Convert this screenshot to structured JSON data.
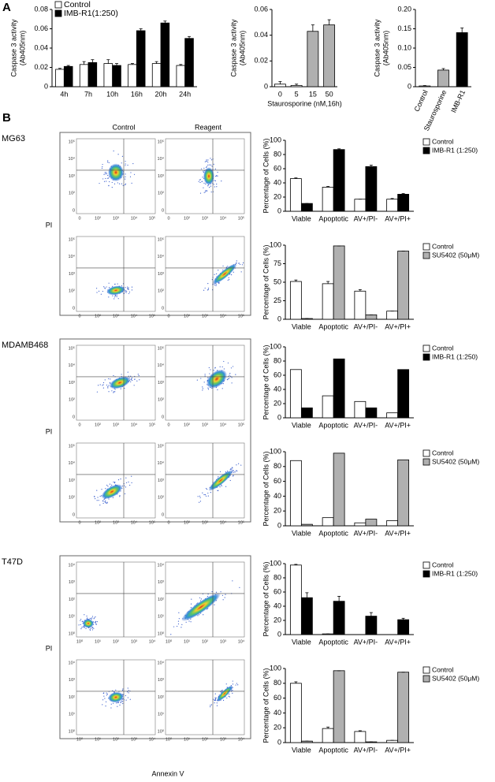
{
  "panel_labels": [
    "A",
    "B"
  ],
  "conditions": [
    "Control",
    "Reagent"
  ],
  "flow_y_label": "PI",
  "flow_x_label": "Annexin V",
  "sections": [
    {
      "label": "MG63",
      "flow_ticks": [
        "0",
        "10²",
        "10³",
        "10⁴",
        "10⁵"
      ]
    },
    {
      "label": "MDAMB468",
      "flow_ticks": [
        "0",
        "10²",
        "10³",
        "10⁴",
        "10⁵"
      ]
    },
    {
      "label": "T47D",
      "flow_ticks": [
        "10⁰",
        "10¹",
        "10²",
        "10³",
        "10⁴"
      ]
    }
  ],
  "chart_data": [
    {
      "type": "bar",
      "ylabel": [
        "Caspase 3 activity",
        "(Ab405nm)"
      ],
      "categories": [
        "4h",
        "7h",
        "10h",
        "16h",
        "20h",
        "24h"
      ],
      "series": [
        {
          "name": "Control",
          "color": "#ffffff",
          "values": [
            0.018,
            0.023,
            0.024,
            0.023,
            0.024,
            0.022
          ],
          "errors": [
            0.001,
            0.003,
            0.004,
            0.001,
            0.002,
            0.001
          ]
        },
        {
          "name": "IMB-R1(1:250)",
          "color": "#000000",
          "values": [
            0.021,
            0.025,
            0.022,
            0.058,
            0.066,
            0.05
          ],
          "errors": [
            0.001,
            0.003,
            0.002,
            0.002,
            0.002,
            0.002
          ]
        }
      ],
      "ylim": [
        0,
        0.08
      ],
      "yticks": [
        0,
        0.02,
        0.04,
        0.06,
        0.08
      ],
      "legend": "upper-left"
    },
    {
      "type": "bar",
      "ylabel": [
        "Caspase 3 activity",
        "(Ab405nm)"
      ],
      "xlabel": "Staurosporine (nM,16h)",
      "categories": [
        "0",
        "5",
        "15",
        "50"
      ],
      "values": [
        0.002,
        0.001,
        0.043,
        0.048
      ],
      "errors": [
        0.002,
        0.001,
        0.005,
        0.004
      ],
      "colors": [
        "#ffffff",
        "#ffffff",
        "#b0b0b0",
        "#b0b0b0"
      ],
      "ylim": [
        0,
        0.06
      ],
      "yticks": [
        0,
        0.02,
        0.04,
        0.06
      ]
    },
    {
      "type": "bar",
      "ylabel": [
        "Caspase 3 activity",
        "(Ab405nm)"
      ],
      "categories": [
        "Control",
        "Staurosporine",
        "IMB-R1"
      ],
      "values": [
        0.002,
        0.043,
        0.14
      ],
      "errors": [
        0.001,
        0.004,
        0.012
      ],
      "colors": [
        "#ffffff",
        "#b0b0b0",
        "#000000"
      ],
      "ylim": [
        0,
        0.2
      ],
      "yticks": [
        0,
        0.05,
        {
          "value": 0.1,
          "label": "0.10"
        },
        0.15,
        {
          "value": 0.2,
          "label": "0.20"
        }
      ]
    },
    {
      "type": "bar",
      "ylabel": "Percentage of Cells (%)",
      "categories": [
        "Viable",
        "Apoptotic",
        "AV+/PI-",
        "AV+/PI+"
      ],
      "series": [
        {
          "name": "Control",
          "color": "#ffffff",
          "values": [
            46,
            34,
            17,
            17
          ],
          "errors": [
            1,
            1,
            0,
            1
          ]
        },
        {
          "name": "IMB-R1 (1:250)",
          "color": "#000000",
          "values": [
            11,
            87,
            63,
            24
          ],
          "errors": [
            0,
            1,
            2,
            1
          ]
        }
      ],
      "ylim": [
        0,
        100
      ],
      "yticks": [
        0,
        20,
        40,
        60,
        80,
        100
      ],
      "legend": "right"
    },
    {
      "type": "bar",
      "ylabel": "Percentage of Cells (%)",
      "categories": [
        "Viable",
        "Apoptotic",
        "AV+/PI-",
        "AV+/PI+"
      ],
      "series": [
        {
          "name": "Control",
          "color": "#ffffff",
          "values": [
            51,
            48,
            38,
            11
          ],
          "errors": [
            2,
            3,
            2,
            0
          ]
        },
        {
          "name": "SU5402 (50μM)",
          "color": "#b0b0b0",
          "values": [
            1,
            99,
            6,
            92
          ],
          "errors": [
            0,
            0,
            0,
            0
          ]
        }
      ],
      "ylim": [
        0,
        100
      ],
      "yticks": [
        0,
        25,
        50,
        75,
        100
      ],
      "legend": "right"
    },
    {
      "type": "bar",
      "ylabel": "Percentage of Cells (%)",
      "categories": [
        "Viable",
        "Apoptotic",
        "AV+/PI-",
        "AV+/PI+"
      ],
      "series": [
        {
          "name": "Control",
          "color": "#ffffff",
          "values": [
            68,
            31,
            23,
            7
          ]
        },
        {
          "name": "IMB-R1 (1:250)",
          "color": "#000000",
          "values": [
            14,
            83,
            14,
            68
          ]
        }
      ],
      "ylim": [
        0,
        100
      ],
      "yticks": [
        0,
        20,
        40,
        60,
        80,
        100
      ],
      "legend": "right"
    },
    {
      "type": "bar",
      "ylabel": "Percentage of Cells (%)",
      "categories": [
        "Viable",
        "Apoptotic",
        "AV+/PI-",
        "AV+/PI+"
      ],
      "series": [
        {
          "name": "Control",
          "color": "#ffffff",
          "values": [
            88,
            11,
            4,
            7
          ]
        },
        {
          "name": "SU5402 (50μM)",
          "color": "#b0b0b0",
          "values": [
            2,
            98,
            9,
            89
          ]
        }
      ],
      "ylim": [
        0,
        100
      ],
      "yticks": [
        0,
        20,
        40,
        60,
        80,
        100
      ],
      "legend": "right"
    },
    {
      "type": "bar",
      "ylabel": "Percentage of Cells (%)",
      "categories": [
        "Viable",
        "Apoptotic",
        "AV+/PI-",
        "AV+/PI+"
      ],
      "series": [
        {
          "name": "Control",
          "color": "#ffffff",
          "values": [
            98,
            1,
            0,
            0
          ],
          "errors": [
            1,
            0,
            0,
            0
          ]
        },
        {
          "name": "IMB-R1 (1:250)",
          "color": "#000000",
          "values": [
            52,
            47,
            26,
            21
          ],
          "errors": [
            7,
            7,
            5,
            2
          ]
        }
      ],
      "ylim": [
        0,
        100
      ],
      "yticks": [
        0,
        20,
        40,
        60,
        80,
        100
      ],
      "legend": "right"
    },
    {
      "type": "bar",
      "ylabel": "Percentage of Cells (%)",
      "categories": [
        "Viable",
        "Apoptotic",
        "AV+/PI-",
        "AV+/PI+"
      ],
      "series": [
        {
          "name": "Control",
          "color": "#ffffff",
          "values": [
            80,
            19,
            15,
            3
          ],
          "errors": [
            2,
            2,
            1,
            0
          ]
        },
        {
          "name": "SU5402 (50μM)",
          "color": "#b0b0b0",
          "values": [
            2,
            97,
            1,
            95
          ],
          "errors": [
            0,
            0,
            0,
            0
          ]
        }
      ],
      "ylim": [
        0,
        100
      ],
      "yticks": [
        0,
        20,
        40,
        60,
        80,
        100
      ],
      "legend": "right"
    }
  ]
}
